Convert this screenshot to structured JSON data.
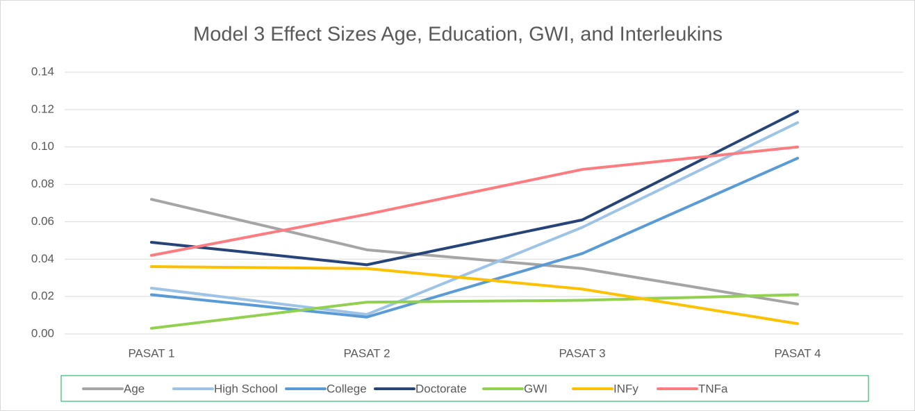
{
  "chart_data": {
    "type": "line",
    "title": "Model 3 Effect Sizes Age, Education, GWI, and Interleukins",
    "categories": [
      "PASAT 1",
      "PASAT 2",
      "PASAT 3",
      "PASAT 4"
    ],
    "series": [
      {
        "name": "Age",
        "color": "#a5a5a5",
        "values": [
          0.072,
          0.045,
          0.035,
          0.016
        ]
      },
      {
        "name": "High School",
        "color": "#9dc3e6",
        "values": [
          0.0245,
          0.0104,
          0.057,
          0.113
        ]
      },
      {
        "name": "College",
        "color": "#5b9bd5",
        "values": [
          0.021,
          0.009,
          0.043,
          0.094
        ]
      },
      {
        "name": "Doctorate",
        "color": "#264478",
        "values": [
          0.049,
          0.037,
          0.061,
          0.119
        ]
      },
      {
        "name": "GWI",
        "color": "#92d050",
        "values": [
          0.003,
          0.017,
          0.018,
          0.021
        ]
      },
      {
        "name": "INFy",
        "color": "#ffc000",
        "values": [
          0.036,
          0.035,
          0.024,
          0.0055
        ]
      },
      {
        "name": "TNFa",
        "color": "#ff7c80",
        "values": [
          0.042,
          0.064,
          0.088,
          0.1
        ]
      }
    ],
    "ylim": [
      0,
      0.14
    ],
    "yticks": [
      {
        "value": 0,
        "label": "0.00"
      },
      {
        "value": 0.02,
        "label": "0.02"
      },
      {
        "value": 0.04,
        "label": "0.04"
      },
      {
        "value": 0.06,
        "label": "0.06"
      },
      {
        "value": 0.08,
        "label": "0.08"
      },
      {
        "value": 0.1,
        "label": "0.10"
      },
      {
        "value": 0.12,
        "label": "0.12"
      },
      {
        "value": 0.14,
        "label": "0.14"
      }
    ],
    "grid": true,
    "legend": "bottom"
  }
}
